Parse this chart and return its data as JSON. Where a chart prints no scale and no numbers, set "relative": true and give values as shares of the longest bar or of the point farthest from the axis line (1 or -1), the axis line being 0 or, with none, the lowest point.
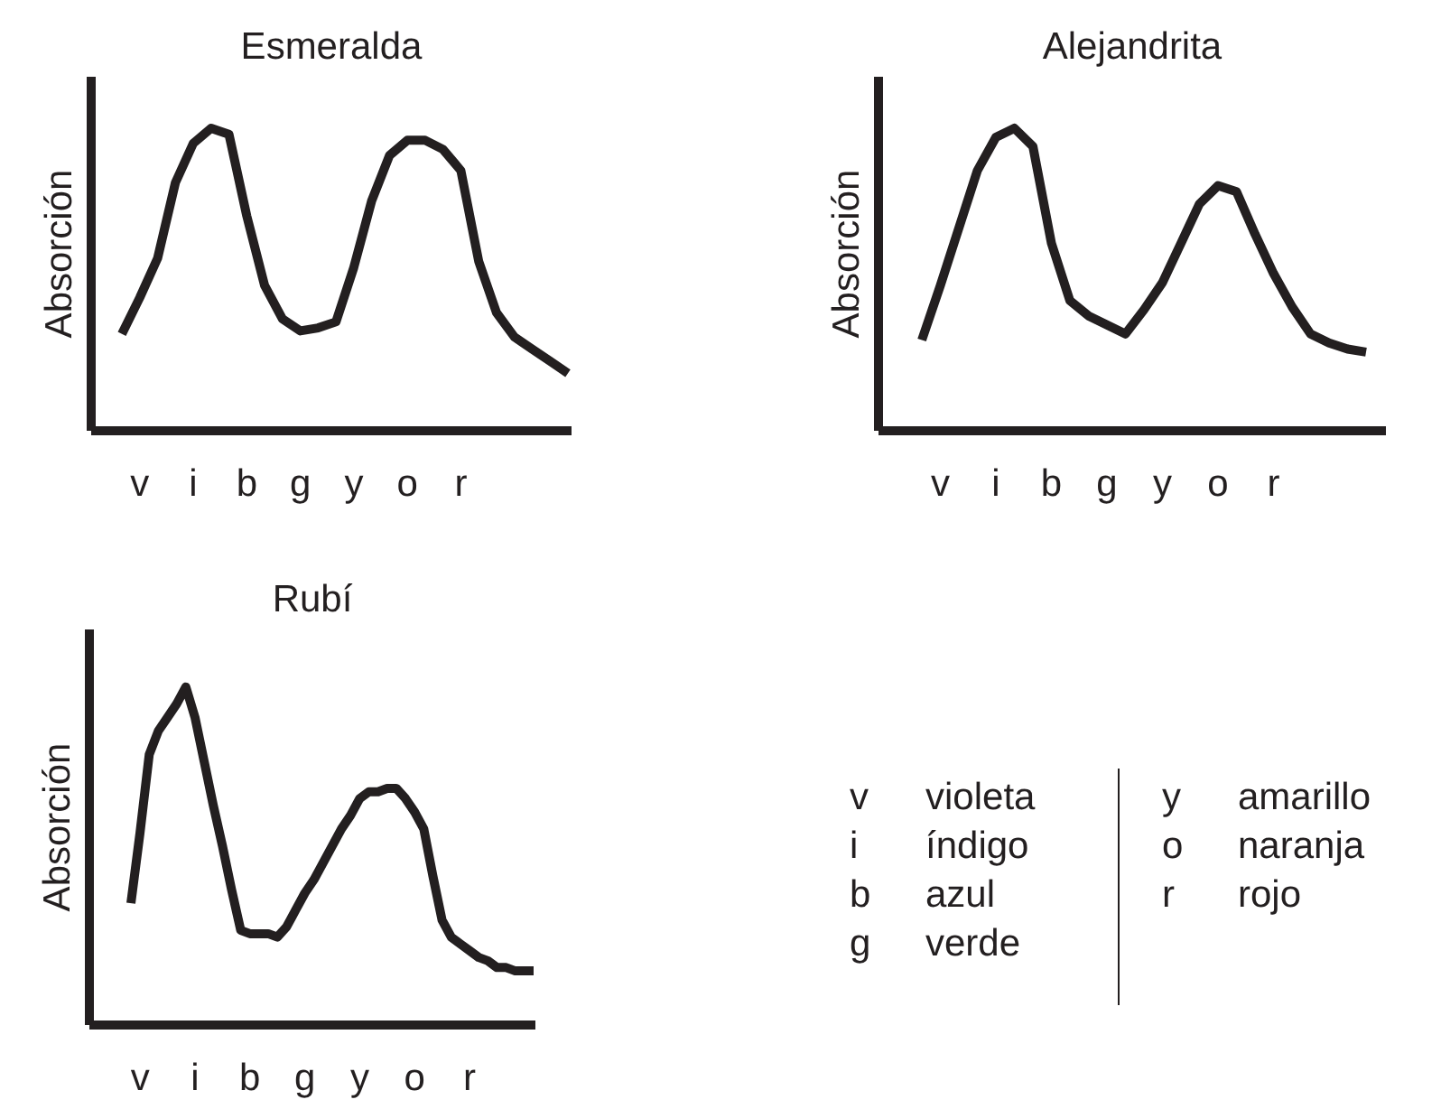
{
  "chart_data": [
    {
      "type": "line",
      "title": "Esmeralda",
      "ylabel": "Absorción",
      "relative": true,
      "color": "#231f20",
      "categories": [
        null,
        "v",
        null,
        null,
        "i",
        null,
        null,
        "b",
        null,
        null,
        "g",
        null,
        null,
        "y",
        null,
        null,
        "o",
        null,
        null,
        "r",
        null,
        null,
        null,
        null,
        null,
        null
      ],
      "values": [
        0.32,
        0.44,
        0.57,
        0.82,
        0.95,
        1.0,
        0.98,
        0.71,
        0.48,
        0.37,
        0.33,
        0.34,
        0.36,
        0.54,
        0.76,
        0.91,
        0.96,
        0.96,
        0.93,
        0.86,
        0.56,
        0.39,
        0.31,
        0.27,
        0.23,
        0.19
      ]
    },
    {
      "type": "line",
      "title": "Alejandrita",
      "ylabel": "Absorción",
      "relative": true,
      "color": "#231f20",
      "categories": [
        null,
        "v",
        null,
        null,
        "i",
        null,
        null,
        "b",
        null,
        null,
        "g",
        null,
        null,
        "y",
        null,
        null,
        "o",
        null,
        null,
        "r",
        null,
        null,
        null,
        null,
        null
      ],
      "values": [
        0.3,
        0.48,
        0.67,
        0.86,
        0.97,
        1.0,
        0.94,
        0.62,
        0.43,
        0.38,
        0.35,
        0.32,
        0.4,
        0.49,
        0.62,
        0.75,
        0.81,
        0.79,
        0.65,
        0.52,
        0.41,
        0.32,
        0.29,
        0.27,
        0.26
      ]
    },
    {
      "type": "line",
      "title": "Rubí",
      "ylabel": "Absorción",
      "relative": true,
      "color": "#231f20",
      "categories": [
        null,
        "v",
        null,
        null,
        null,
        null,
        null,
        "i",
        null,
        null,
        null,
        null,
        null,
        "b",
        null,
        null,
        null,
        null,
        null,
        "g",
        null,
        null,
        null,
        null,
        null,
        "y",
        null,
        null,
        null,
        null,
        null,
        "o",
        null,
        null,
        null,
        null,
        null,
        "r",
        null,
        null,
        null,
        null,
        null,
        null,
        null
      ],
      "values": [
        0.36,
        0.57,
        0.8,
        0.87,
        0.91,
        0.95,
        1.0,
        0.91,
        0.78,
        0.65,
        0.53,
        0.4,
        0.28,
        0.27,
        0.27,
        0.27,
        0.26,
        0.29,
        0.34,
        0.39,
        0.43,
        0.48,
        0.53,
        0.58,
        0.62,
        0.67,
        0.69,
        0.69,
        0.7,
        0.7,
        0.67,
        0.63,
        0.58,
        0.44,
        0.31,
        0.26,
        0.24,
        0.22,
        0.2,
        0.19,
        0.17,
        0.17,
        0.16,
        0.16,
        0.16
      ]
    },
    {
      "type": "other",
      "annotations": [
        "v",
        "violeta",
        "i",
        "índigo",
        "b",
        "azul",
        "g",
        "verde",
        "y",
        "amarillo",
        "o",
        "naranja",
        "r",
        "rojo"
      ]
    }
  ]
}
